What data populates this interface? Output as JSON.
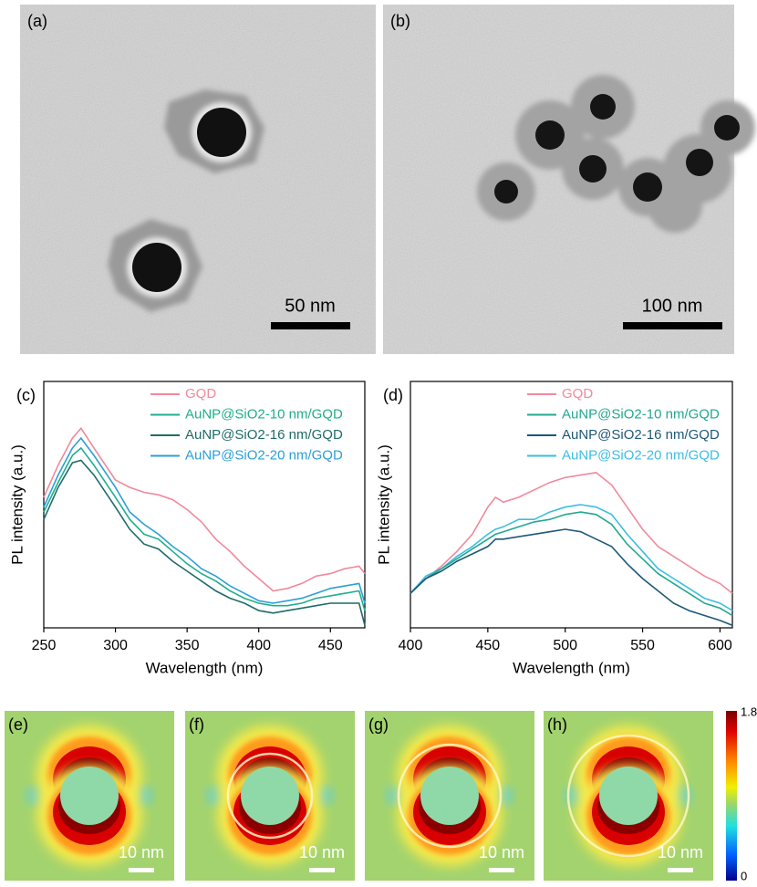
{
  "panels": [
    {
      "label": "(a)",
      "scale": "50 nm"
    },
    {
      "label": "(b)",
      "scale": "100 nm"
    }
  ],
  "chart_data": [
    {
      "type": "line",
      "label": "(c)",
      "x_label": "Wavelength (nm)",
      "y_label": "PL intensity (a.u.)",
      "x": [
        250,
        260,
        270,
        276,
        285,
        300,
        310,
        320,
        330,
        340,
        350,
        360,
        370,
        380,
        390,
        400,
        410,
        420,
        430,
        440,
        450,
        460,
        470,
        474
      ],
      "xlim": [
        250,
        474
      ],
      "xticks": [
        250,
        300,
        350,
        400,
        450
      ],
      "ylim": [
        0,
        100
      ],
      "series": [
        {
          "name": "GQD",
          "color": "#f0899b",
          "values": [
            53,
            66,
            77,
            81,
            73,
            60,
            57,
            55,
            54,
            52,
            48,
            43,
            36,
            31,
            25,
            20,
            15,
            16,
            18,
            21,
            22,
            24,
            25,
            22
          ]
        },
        {
          "name": "AuNP@SiO2-10 nm/GQD",
          "color": "#1fae8c",
          "values": [
            47,
            59,
            70,
            73,
            66,
            53,
            44,
            38,
            36,
            31,
            26,
            22,
            19,
            15,
            12,
            10,
            9,
            9,
            10,
            12,
            13,
            14,
            15,
            7
          ]
        },
        {
          "name": "AuNP@SiO2-16 nm/GQD",
          "color": "#1f6b6a",
          "values": [
            44,
            57,
            67,
            68,
            62,
            49,
            40,
            34,
            32,
            27,
            23,
            19,
            15,
            12,
            10,
            7,
            6,
            7,
            8,
            9,
            10,
            10,
            10,
            1
          ]
        },
        {
          "name": "AuNP@SiO2-20 nm/GQD",
          "color": "#2b9fd6",
          "values": [
            49,
            62,
            73,
            77,
            70,
            57,
            47,
            42,
            38,
            33,
            29,
            24,
            21,
            17,
            14,
            11,
            10,
            11,
            12,
            14,
            16,
            17,
            18,
            10
          ]
        }
      ]
    },
    {
      "type": "line",
      "label": "(d)",
      "x_label": "Wavelength (nm)",
      "y_label": "PL intensity (a.u.)",
      "x": [
        400,
        410,
        420,
        430,
        440,
        450,
        455,
        460,
        470,
        480,
        490,
        500,
        510,
        520,
        530,
        540,
        550,
        560,
        570,
        580,
        590,
        600,
        608
      ],
      "xlim": [
        400,
        608
      ],
      "xticks": [
        400,
        450,
        500,
        550,
        600
      ],
      "ylim": [
        0,
        100
      ],
      "series": [
        {
          "name": "GQD",
          "color": "#f0899b",
          "values": [
            14,
            20,
            25,
            31,
            38,
            49,
            53,
            51,
            53,
            56,
            59,
            61,
            62,
            63,
            58,
            49,
            40,
            33,
            29,
            25,
            21,
            18,
            14
          ]
        },
        {
          "name": "AuNP@SiO2-10 nm/GQD",
          "color": "#22a88e",
          "values": [
            14,
            20,
            24,
            28,
            32,
            36,
            38,
            39,
            41,
            43,
            44,
            46,
            47,
            46,
            42,
            34,
            28,
            22,
            18,
            14,
            10,
            8,
            5
          ]
        },
        {
          "name": "AuNP@SiO2-16 nm/GQD",
          "color": "#1d5877",
          "values": [
            14,
            20,
            23,
            27,
            30,
            33,
            36,
            36,
            37,
            38,
            39,
            40,
            39,
            36,
            33,
            26,
            20,
            15,
            10,
            7,
            5,
            3,
            1
          ]
        },
        {
          "name": "AuNP@SiO2-20 nm/GQD",
          "color": "#3cbde3",
          "values": [
            14,
            21,
            24,
            29,
            33,
            38,
            40,
            41,
            44,
            44,
            47,
            49,
            50,
            49,
            46,
            38,
            31,
            24,
            20,
            16,
            12,
            10,
            7
          ]
        }
      ]
    }
  ],
  "maps": [
    {
      "label": "(e)",
      "scale": "10 nm"
    },
    {
      "label": "(f)",
      "scale": "10 nm"
    },
    {
      "label": "(g)",
      "scale": "10 nm"
    },
    {
      "label": "(h)",
      "scale": "10 nm"
    }
  ],
  "colorbar": {
    "top": "1.8",
    "bottom": "0"
  }
}
